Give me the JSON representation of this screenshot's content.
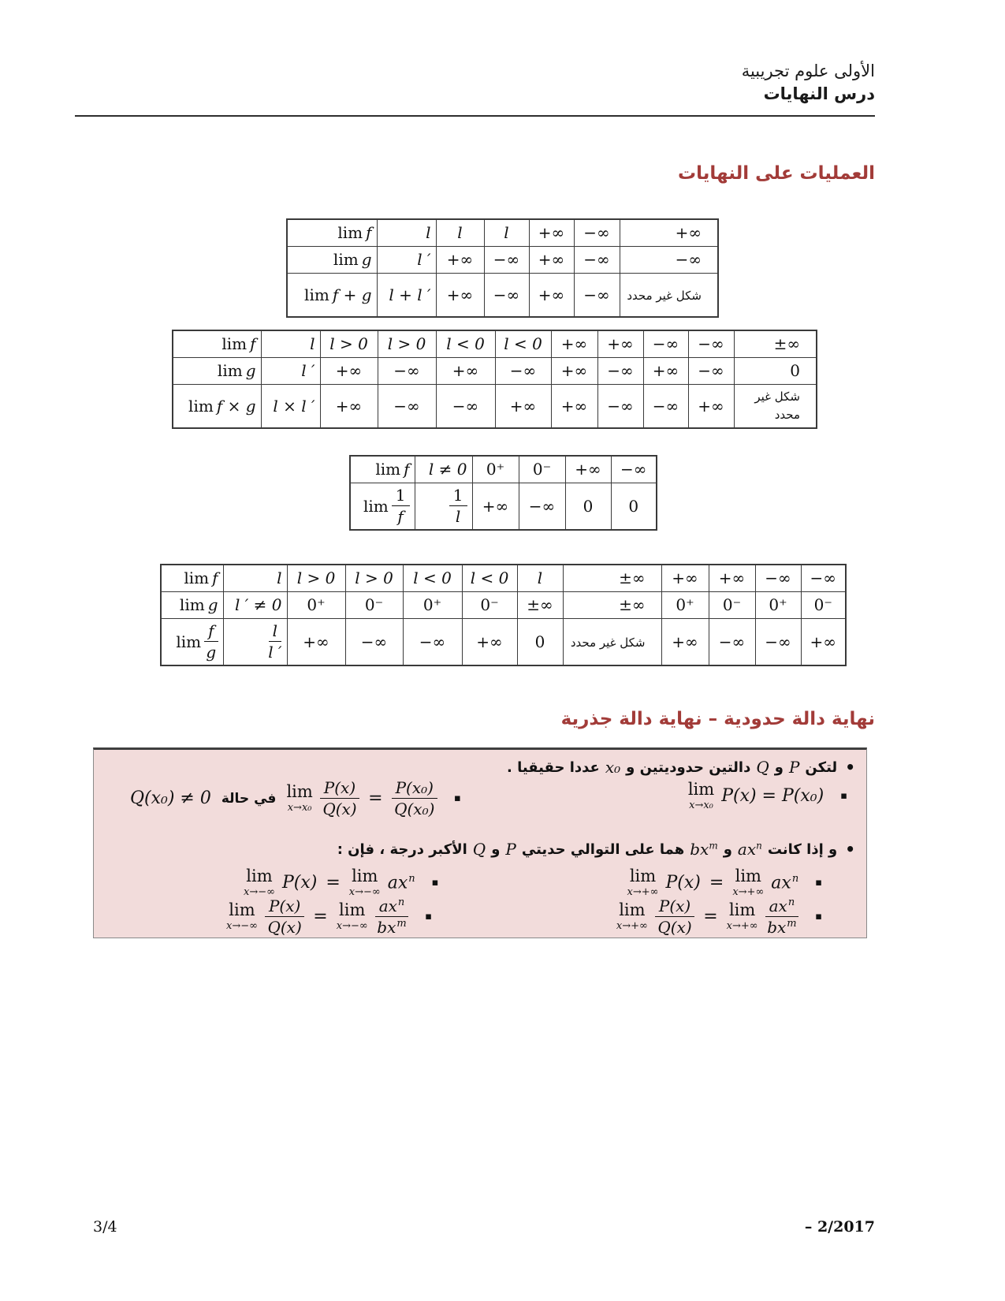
{
  "header": {
    "line1": "الأولى علوم تجريبية",
    "line2": "درس النهايات"
  },
  "sections": {
    "ops_title": "العمليات على النهايات",
    "poly_title": "نهاية دالة حدودية – نهاية دالة جذرية"
  },
  "colors": {
    "heading": "#A23B38",
    "box_bg": "#F2DCDB"
  },
  "icons": {
    "bullet": "•",
    "square": "▪"
  },
  "tables": {
    "sum": {
      "rows": [
        {
          "label": {
            "r": "lim",
            "i": "f"
          },
          "cells": [
            "l",
            "l",
            "l",
            "+∞",
            "−∞",
            "+∞"
          ]
        },
        {
          "label": {
            "r": "lim",
            "i": "g"
          },
          "cells": [
            "l ′",
            "+∞",
            "−∞",
            "+∞",
            "−∞",
            "−∞"
          ]
        },
        {
          "label": {
            "r": "lim",
            "i": "f + g"
          },
          "cells": [
            "l + l ′",
            "+∞",
            "−∞",
            "+∞",
            "−∞",
            "شكل غير محدد"
          ]
        }
      ]
    },
    "product": {
      "rows": [
        {
          "label": {
            "r": "lim",
            "i": "f"
          },
          "cells": [
            "l",
            "l > 0",
            "l > 0",
            "l < 0",
            "l < 0",
            "+∞",
            "+∞",
            "−∞",
            "−∞",
            "±∞"
          ]
        },
        {
          "label": {
            "r": "lim",
            "i": "g"
          },
          "cells": [
            "l ′",
            "+∞",
            "−∞",
            "+∞",
            "−∞",
            "+∞",
            "−∞",
            "+∞",
            "−∞",
            "0"
          ]
        },
        {
          "label": {
            "r": "lim",
            "i": "f × g"
          },
          "cells": [
            "l × l ′",
            "+∞",
            "−∞",
            "−∞",
            "+∞",
            "+∞",
            "−∞",
            "−∞",
            "+∞",
            "شكل غير محدد"
          ]
        }
      ]
    },
    "reciprocal": {
      "rows": [
        {
          "label": {
            "r": "lim",
            "i": "f"
          },
          "cells": [
            "l ≠ 0",
            "0⁺",
            "0⁻",
            "+∞",
            "−∞"
          ]
        },
        {
          "label": {
            "r": "lim",
            "num": "1",
            "den": "f"
          },
          "cells": [
            {
              "num": "1",
              "den": "l"
            },
            "+∞",
            "−∞",
            "0",
            "0"
          ]
        }
      ]
    },
    "quotient": {
      "rows": [
        {
          "label": {
            "r": "lim",
            "i": "f"
          },
          "cells": [
            "l",
            "l > 0",
            "l > 0",
            "l < 0",
            "l < 0",
            "l",
            "±∞",
            "+∞",
            "+∞",
            "−∞",
            "−∞"
          ]
        },
        {
          "label": {
            "r": "lim",
            "i": "g"
          },
          "cells": [
            "l ′ ≠ 0",
            "0⁺",
            "0⁻",
            "0⁺",
            "0⁻",
            "±∞",
            "±∞",
            "0⁺",
            "0⁻",
            "0⁺",
            "0⁻"
          ]
        },
        {
          "label": {
            "r": "lim",
            "num": "f",
            "den": "g"
          },
          "cells": [
            {
              "num": "l",
              "den": "l ′"
            },
            "+∞",
            "−∞",
            "−∞",
            "+∞",
            "0",
            "شكل غير محدد",
            "+∞",
            "−∞",
            "−∞",
            "+∞"
          ]
        }
      ]
    }
  },
  "box": {
    "bullet1": {
      "pre": "لتكن",
      "p": "P",
      "and1": "و",
      "q": "Q",
      "mid": "دالتين حدوديتين و",
      "x0": "x₀",
      "end": "عددا حقيقيا ."
    },
    "f_pa": {
      "lim": "lim",
      "sub": "x→x₀",
      "body": "P(x) = P(x₀)"
    },
    "f_pq": {
      "cond_math": "Q(x₀) ≠ 0",
      "cond": "في حالة",
      "lim": "lim",
      "sub": "x→x₀",
      "num1": "P(x)",
      "den1": "Q(x)",
      "eq": "=",
      "num2": "P(x₀)",
      "den2": "Q(x₀)"
    },
    "bullet2": {
      "a": "و إذا كانت",
      "axn_base": "ax",
      "axn_sup": "n",
      "and1": "و",
      "bxm_base": "bx",
      "bxm_sup": "m",
      "b": "هما على التوالي حديتي",
      "p": "P",
      "and2": "و",
      "q": "Q",
      "c": "الأكبر درجة ، فإن :"
    },
    "f_p_plus": {
      "lim": "lim",
      "sub": "x→+∞",
      "body": "P(x)",
      "eq": "=",
      "lim2": "lim",
      "sub2": "x→+∞",
      "base": "ax",
      "sup": "n"
    },
    "f_p_minus": {
      "lim": "lim",
      "sub": "x→−∞",
      "body": "P(x)",
      "eq": "=",
      "lim2": "lim",
      "sub2": "x→−∞",
      "base": "ax",
      "sup": "n"
    },
    "f_q_plus": {
      "lim": "lim",
      "sub": "x→+∞",
      "num1": "P(x)",
      "den1": "Q(x)",
      "eq": "=",
      "lim2": "lim",
      "sub2": "x→+∞",
      "num2_base": "ax",
      "num2_sup": "n",
      "den2_base": "bx",
      "den2_sup": "m"
    },
    "f_q_minus": {
      "lim": "lim",
      "sub": "x→−∞",
      "num1": "P(x)",
      "den1": "Q(x)",
      "eq": "=",
      "lim2": "lim",
      "sub2": "x→−∞",
      "num2_base": "ax",
      "num2_sup": "n",
      "den2_base": "bx",
      "den2_sup": "m"
    }
  },
  "footer": {
    "page": "3/4",
    "date": "– 2/2017"
  }
}
